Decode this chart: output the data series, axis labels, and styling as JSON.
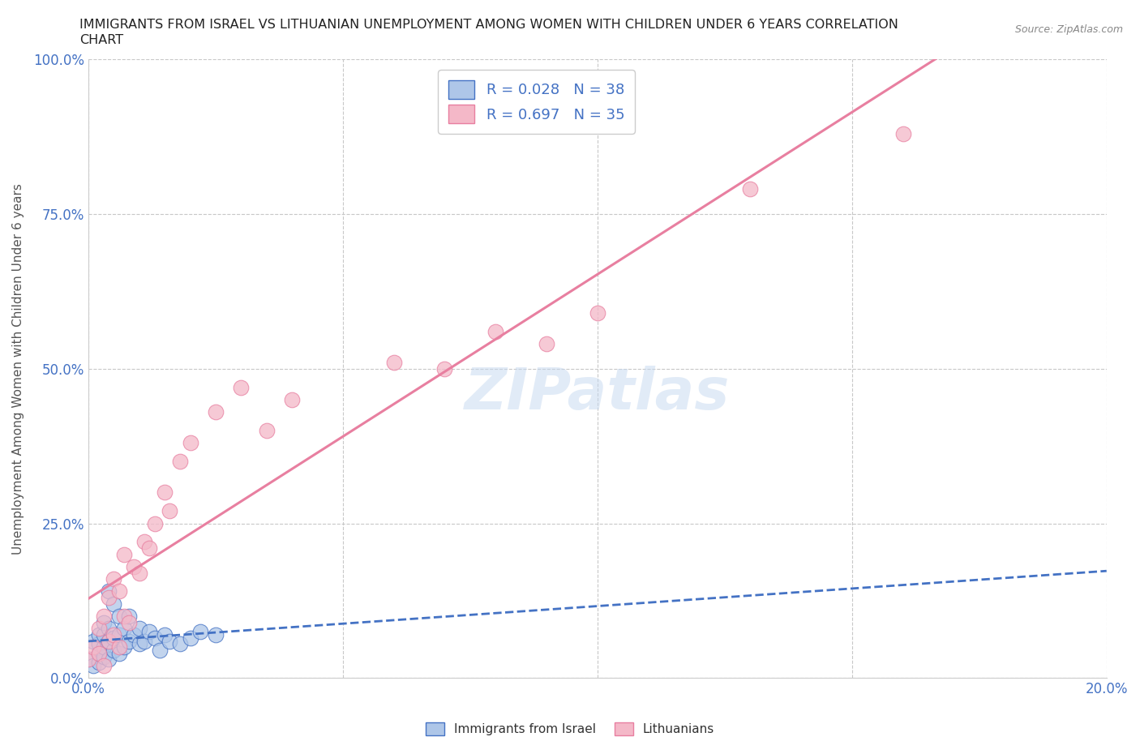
{
  "title_line1": "IMMIGRANTS FROM ISRAEL VS LITHUANIAN UNEMPLOYMENT AMONG WOMEN WITH CHILDREN UNDER 6 YEARS CORRELATION",
  "title_line2": "CHART",
  "source": "Source: ZipAtlas.com",
  "ylabel_label": "Unemployment Among Women with Children Under 6 years",
  "israel_scatter_x": [
    0.0,
    0.001,
    0.001,
    0.002,
    0.002,
    0.002,
    0.002,
    0.003,
    0.003,
    0.003,
    0.003,
    0.004,
    0.004,
    0.004,
    0.004,
    0.005,
    0.005,
    0.005,
    0.006,
    0.006,
    0.006,
    0.007,
    0.007,
    0.008,
    0.008,
    0.009,
    0.01,
    0.01,
    0.011,
    0.012,
    0.013,
    0.014,
    0.015,
    0.016,
    0.018,
    0.02,
    0.022,
    0.025
  ],
  "israel_scatter_y": [
    0.03,
    0.02,
    0.06,
    0.025,
    0.04,
    0.055,
    0.07,
    0.035,
    0.05,
    0.07,
    0.09,
    0.03,
    0.06,
    0.08,
    0.14,
    0.045,
    0.065,
    0.12,
    0.04,
    0.07,
    0.1,
    0.05,
    0.08,
    0.06,
    0.1,
    0.07,
    0.055,
    0.08,
    0.06,
    0.075,
    0.065,
    0.045,
    0.07,
    0.06,
    0.055,
    0.065,
    0.075,
    0.07
  ],
  "lithuania_scatter_x": [
    0.0,
    0.001,
    0.002,
    0.002,
    0.003,
    0.003,
    0.004,
    0.004,
    0.005,
    0.005,
    0.006,
    0.006,
    0.007,
    0.007,
    0.008,
    0.009,
    0.01,
    0.011,
    0.012,
    0.013,
    0.015,
    0.016,
    0.018,
    0.02,
    0.025,
    0.03,
    0.035,
    0.04,
    0.06,
    0.07,
    0.08,
    0.09,
    0.1,
    0.13,
    0.16
  ],
  "lithuania_scatter_y": [
    0.03,
    0.05,
    0.04,
    0.08,
    0.02,
    0.1,
    0.06,
    0.13,
    0.07,
    0.16,
    0.05,
    0.14,
    0.1,
    0.2,
    0.09,
    0.18,
    0.17,
    0.22,
    0.21,
    0.25,
    0.3,
    0.27,
    0.35,
    0.38,
    0.43,
    0.47,
    0.4,
    0.45,
    0.51,
    0.5,
    0.56,
    0.54,
    0.59,
    0.79,
    0.88
  ],
  "israel_color": "#aec6e8",
  "israel_line_color": "#4472c4",
  "israel_trend_color": "#4472c4",
  "lithuania_color": "#f4b8c8",
  "lithuania_line_color": "#e87fa0",
  "lithuania_trend_color": "#e87fa0",
  "xlim": [
    0.0,
    0.2
  ],
  "ylim": [
    0.0,
    1.0
  ],
  "watermark_text": "ZIPatlas",
  "background_color": "#ffffff",
  "grid_color": "#c8c8c8"
}
